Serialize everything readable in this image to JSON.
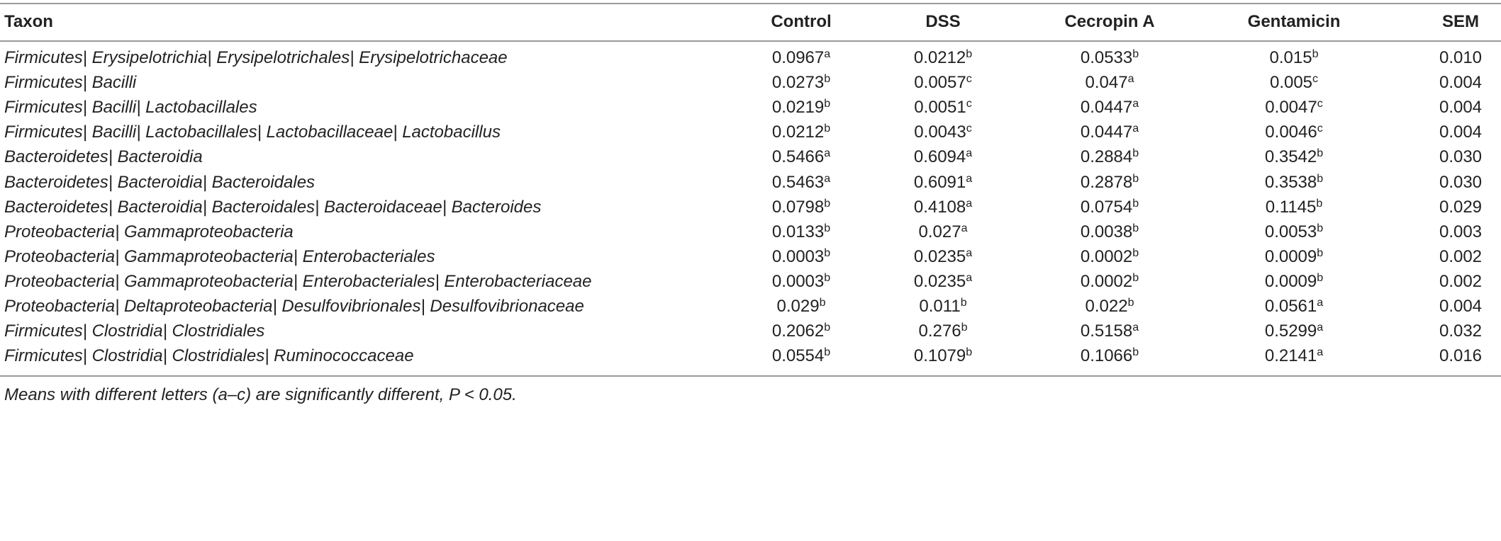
{
  "table": {
    "header": [
      "Taxon",
      "Control",
      "DSS",
      "Cecropin A",
      "Gentamicin",
      "SEM"
    ],
    "rows": [
      [
        "Firmicutes| Erysipelotrichia| Erysipelotrichales| Erysipelotrichaceae",
        {
          "value": "0.0967",
          "sup": "a"
        },
        {
          "value": "0.0212",
          "sup": "b"
        },
        {
          "value": "0.0533",
          "sup": "b"
        },
        {
          "value": "0.015",
          "sup": "b"
        },
        "0.010"
      ],
      [
        "Firmicutes| Bacilli",
        {
          "value": "0.0273",
          "sup": "b"
        },
        {
          "value": "0.0057",
          "sup": "c"
        },
        {
          "value": "0.047",
          "sup": "a"
        },
        {
          "value": "0.005",
          "sup": "c"
        },
        "0.004"
      ],
      [
        "Firmicutes| Bacilli| Lactobacillales",
        {
          "value": "0.0219",
          "sup": "b"
        },
        {
          "value": "0.0051",
          "sup": "c"
        },
        {
          "value": "0.0447",
          "sup": "a"
        },
        {
          "value": "0.0047",
          "sup": "c"
        },
        "0.004"
      ],
      [
        "Firmicutes| Bacilli| Lactobacillales| Lactobacillaceae| Lactobacillus",
        {
          "value": "0.0212",
          "sup": "b"
        },
        {
          "value": "0.0043",
          "sup": "c"
        },
        {
          "value": "0.0447",
          "sup": "a"
        },
        {
          "value": "0.0046",
          "sup": "c"
        },
        "0.004"
      ],
      [
        "Bacteroidetes| Bacteroidia",
        {
          "value": "0.5466",
          "sup": "a"
        },
        {
          "value": "0.6094",
          "sup": "a"
        },
        {
          "value": "0.2884",
          "sup": "b"
        },
        {
          "value": "0.3542",
          "sup": "b"
        },
        "0.030"
      ],
      [
        "Bacteroidetes| Bacteroidia| Bacteroidales",
        {
          "value": "0.5463",
          "sup": "a"
        },
        {
          "value": "0.6091",
          "sup": "a"
        },
        {
          "value": "0.2878",
          "sup": "b"
        },
        {
          "value": "0.3538",
          "sup": "b"
        },
        "0.030"
      ],
      [
        "Bacteroidetes| Bacteroidia| Bacteroidales| Bacteroidaceae| Bacteroides",
        {
          "value": "0.0798",
          "sup": "b"
        },
        {
          "value": "0.4108",
          "sup": "a"
        },
        {
          "value": "0.0754",
          "sup": "b"
        },
        {
          "value": "0.1145",
          "sup": "b"
        },
        "0.029"
      ],
      [
        "Proteobacteria| Gammaproteobacteria",
        {
          "value": "0.0133",
          "sup": "b"
        },
        {
          "value": "0.027",
          "sup": "a"
        },
        {
          "value": "0.0038",
          "sup": "b"
        },
        {
          "value": "0.0053",
          "sup": "b"
        },
        "0.003"
      ],
      [
        "Proteobacteria| Gammaproteobacteria| Enterobacteriales",
        {
          "value": "0.0003",
          "sup": "b"
        },
        {
          "value": "0.0235",
          "sup": "a"
        },
        {
          "value": "0.0002",
          "sup": "b"
        },
        {
          "value": "0.0009",
          "sup": "b"
        },
        "0.002"
      ],
      [
        "Proteobacteria| Gammaproteobacteria| Enterobacteriales| Enterobacteriaceae",
        {
          "value": "0.0003",
          "sup": "b"
        },
        {
          "value": "0.0235",
          "sup": "a"
        },
        {
          "value": "0.0002",
          "sup": "b"
        },
        {
          "value": "0.0009",
          "sup": "b"
        },
        "0.002"
      ],
      [
        "Proteobacteria| Deltaproteobacteria| Desulfovibrionales| Desulfovibrionaceae",
        {
          "value": "0.029",
          "sup": "b"
        },
        {
          "value": "0.011",
          "sup": "b"
        },
        {
          "value": "0.022",
          "sup": "b"
        },
        {
          "value": "0.0561",
          "sup": "a"
        },
        "0.004"
      ],
      [
        "Firmicutes| Clostridia| Clostridiales",
        {
          "value": "0.2062",
          "sup": "b"
        },
        {
          "value": "0.276",
          "sup": "b"
        },
        {
          "value": "0.5158",
          "sup": "a"
        },
        {
          "value": "0.5299",
          "sup": "a"
        },
        "0.032"
      ],
      [
        "Firmicutes| Clostridia| Clostridiales| Ruminococcaceae",
        {
          "value": "0.0554",
          "sup": "b"
        },
        {
          "value": "0.1079",
          "sup": "b"
        },
        {
          "value": "0.1066",
          "sup": "b"
        },
        {
          "value": "0.2141",
          "sup": "a"
        },
        "0.016"
      ]
    ]
  },
  "footnote": "Means with different letters (a–c) are significantly different, P < 0.05."
}
